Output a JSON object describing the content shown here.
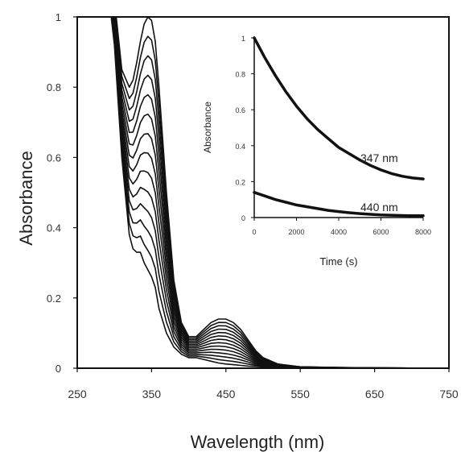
{
  "chart_data": [
    {
      "type": "line",
      "xlabel": "Wavelength (nm)",
      "ylabel": "Absorbance",
      "xlim": [
        250,
        750
      ],
      "ylim": [
        0,
        1
      ],
      "xticks": [
        250,
        350,
        450,
        550,
        650,
        750
      ],
      "xtick_labels": [
        "250",
        "350",
        "450",
        "550",
        "650",
        "750"
      ],
      "yticks": [
        0,
        0.2,
        0.4,
        0.6,
        0.8,
        1
      ],
      "ytick_labels": [
        "0",
        "0.2",
        "0.4",
        "0.6",
        "0.8",
        "1"
      ],
      "n_series": 14,
      "x": [
        270,
        285,
        300,
        310,
        320,
        325,
        330,
        335,
        340,
        345,
        350,
        355,
        360,
        370,
        380,
        390,
        400,
        410,
        420,
        430,
        440,
        450,
        460,
        470,
        480,
        490,
        500,
        520,
        550,
        600,
        650,
        750
      ],
      "series_first": [
        1.5,
        1.3,
        1.05,
        0.85,
        0.8,
        0.82,
        0.87,
        0.93,
        0.98,
        1.0,
        0.99,
        0.93,
        0.8,
        0.5,
        0.25,
        0.13,
        0.09,
        0.09,
        0.11,
        0.13,
        0.14,
        0.14,
        0.13,
        0.11,
        0.08,
        0.05,
        0.03,
        0.012,
        0.004,
        0.002,
        0.001,
        0.0
      ],
      "series_last": [
        1.5,
        1.2,
        0.92,
        0.6,
        0.38,
        0.34,
        0.33,
        0.33,
        0.3,
        0.28,
        0.26,
        0.23,
        0.17,
        0.1,
        0.06,
        0.04,
        0.03,
        0.03,
        0.025,
        0.02,
        0.015,
        0.012,
        0.01,
        0.008,
        0.006,
        0.005,
        0.004,
        0.003,
        0.002,
        0.001,
        0.0,
        0.0
      ]
    },
    {
      "type": "line",
      "xlabel": "Time (s)",
      "ylabel": "Absorbance",
      "xlim": [
        0,
        8000
      ],
      "ylim": [
        0,
        1
      ],
      "xticks": [
        0,
        2000,
        4000,
        6000,
        8000
      ],
      "xtick_labels": [
        "0",
        "2000",
        "4000",
        "6000",
        "8000"
      ],
      "yticks": [
        0,
        0.2,
        0.4,
        0.6,
        0.8,
        1
      ],
      "ytick_labels": [
        "0",
        "0.2",
        "0.4",
        "0.6",
        "0.8",
        "1"
      ],
      "x": [
        0,
        500,
        1000,
        1500,
        2000,
        2500,
        3000,
        3500,
        4000,
        4500,
        5000,
        5500,
        6000,
        6500,
        7000,
        7500,
        8000
      ],
      "series": [
        {
          "name": "347 nm",
          "values": [
            1.0,
            0.89,
            0.79,
            0.7,
            0.62,
            0.55,
            0.49,
            0.44,
            0.39,
            0.355,
            0.32,
            0.29,
            0.265,
            0.245,
            0.23,
            0.22,
            0.215
          ]
        },
        {
          "name": "440 nm",
          "values": [
            0.14,
            0.12,
            0.1,
            0.085,
            0.07,
            0.06,
            0.05,
            0.04,
            0.033,
            0.027,
            0.022,
            0.018,
            0.015,
            0.013,
            0.011,
            0.01,
            0.01
          ]
        }
      ]
    }
  ]
}
